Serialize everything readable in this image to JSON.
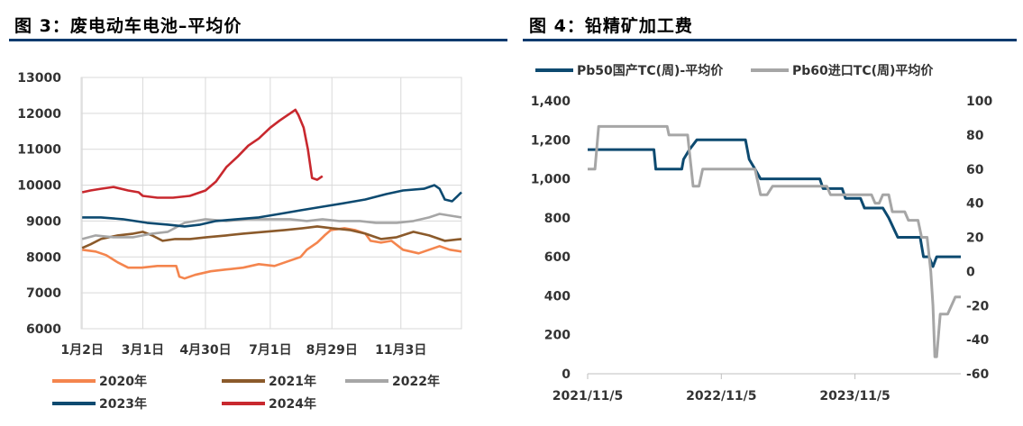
{
  "left_figure": {
    "title": "图 3：废电动车电池–平均价"
  },
  "right_figure": {
    "title": "图 4：铅精矿加工费"
  },
  "colors": {
    "rule": "#0b3a6e",
    "grid": "#d9d9d9"
  },
  "chart_data": [
    {
      "type": "line",
      "title": "",
      "x_type": "day-of-year",
      "xlim": [
        "1月1日",
        "12月31日"
      ],
      "categories": [
        "1月2日",
        "3月1日",
        "4月30日",
        "7月1日",
        "8月29日",
        "11月3日"
      ],
      "ylim": [
        6000,
        13000
      ],
      "yticks": [
        "13000",
        "12000",
        "11000",
        "10000",
        "9000",
        "8000",
        "7000",
        "6000"
      ],
      "grid": true,
      "legend_position": "bottom",
      "series": [
        {
          "name": "2020年",
          "color": "#f4854e",
          "points": [
            [
              "1月2日",
              8200
            ],
            [
              "1月15日",
              8150
            ],
            [
              "1月25日",
              8050
            ],
            [
              "2月5日",
              7850
            ],
            [
              "2月15日",
              7700
            ],
            [
              "2月28日",
              7700
            ],
            [
              "3月15日",
              7750
            ],
            [
              "3月25日",
              7750
            ],
            [
              "4月2日",
              7750
            ],
            [
              "4月5日",
              7450
            ],
            [
              "4月10日",
              7400
            ],
            [
              "4月20日",
              7500
            ],
            [
              "5月5日",
              7600
            ],
            [
              "5月20日",
              7650
            ],
            [
              "6月5日",
              7700
            ],
            [
              "6月20日",
              7800
            ],
            [
              "7月5日",
              7750
            ],
            [
              "7月20日",
              7900
            ],
            [
              "7月30日",
              8000
            ],
            [
              "8月5日",
              8200
            ],
            [
              "8月15日",
              8400
            ],
            [
              "8月22日",
              8600
            ],
            [
              "8月28日",
              8750
            ],
            [
              "9月10日",
              8800
            ],
            [
              "9月20日",
              8750
            ],
            [
              "9月30日",
              8650
            ],
            [
              "10月5日",
              8450
            ],
            [
              "10月15日",
              8400
            ],
            [
              "10月25日",
              8450
            ],
            [
              "11月5日",
              8200
            ],
            [
              "11月20日",
              8100
            ],
            [
              "11月30日",
              8200
            ],
            [
              "12月10日",
              8300
            ],
            [
              "12月20日",
              8200
            ],
            [
              "12月31日",
              8150
            ]
          ]
        },
        {
          "name": "2021年",
          "color": "#8b5a2b",
          "points": [
            [
              "1月2日",
              8250
            ],
            [
              "1月10日",
              8350
            ],
            [
              "1月20日",
              8500
            ],
            [
              "2月5日",
              8600
            ],
            [
              "2月20日",
              8650
            ],
            [
              "3月1日",
              8700
            ],
            [
              "3月10日",
              8600
            ],
            [
              "3月20日",
              8450
            ],
            [
              "4月1日",
              8500
            ],
            [
              "4月15日",
              8500
            ],
            [
              "5月1日",
              8550
            ],
            [
              "5月20日",
              8600
            ],
            [
              "6月5日",
              8650
            ],
            [
              "6月25日",
              8700
            ],
            [
              "7月15日",
              8750
            ],
            [
              "8月1日",
              8800
            ],
            [
              "8月15日",
              8850
            ],
            [
              "8月29日",
              8800
            ],
            [
              "9月15日",
              8750
            ],
            [
              "9月30日",
              8650
            ],
            [
              "10月15日",
              8500
            ],
            [
              "10月30日",
              8550
            ],
            [
              "11月15日",
              8700
            ],
            [
              "11月30日",
              8600
            ],
            [
              "12月15日",
              8450
            ],
            [
              "12月31日",
              8500
            ]
          ]
        },
        {
          "name": "2022年",
          "color": "#a6a6a6",
          "points": [
            [
              "1月2日",
              8500
            ],
            [
              "1月15日",
              8600
            ],
            [
              "2月1日",
              8550
            ],
            [
              "2月20日",
              8550
            ],
            [
              "3月10日",
              8650
            ],
            [
              "3月25日",
              8700
            ],
            [
              "4月10日",
              8950
            ],
            [
              "4月30日",
              9050
            ],
            [
              "5月20日",
              9000
            ],
            [
              "6月10日",
              9050
            ],
            [
              "6月30日",
              9050
            ],
            [
              "7月20日",
              9050
            ],
            [
              "8月5日",
              9000
            ],
            [
              "8月20日",
              9050
            ],
            [
              "9月5日",
              9000
            ],
            [
              "9月25日",
              9000
            ],
            [
              "10月10日",
              8950
            ],
            [
              "10月30日",
              8950
            ],
            [
              "11月15日",
              9000
            ],
            [
              "11月30日",
              9100
            ],
            [
              "12月10日",
              9200
            ],
            [
              "12月20日",
              9150
            ],
            [
              "12月31日",
              9100
            ]
          ]
        },
        {
          "name": "2023年",
          "color": "#0d4a70",
          "points": [
            [
              "1月2日",
              9100
            ],
            [
              "1月20日",
              9100
            ],
            [
              "2月10日",
              9050
            ],
            [
              "3月5日",
              8950
            ],
            [
              "3月25日",
              8900
            ],
            [
              "4月10日",
              8850
            ],
            [
              "4月25日",
              8900
            ],
            [
              "5月10日",
              9000
            ],
            [
              "5月30日",
              9050
            ],
            [
              "6月20日",
              9100
            ],
            [
              "7月10日",
              9200
            ],
            [
              "7月30日",
              9300
            ],
            [
              "8月20日",
              9400
            ],
            [
              "9月10日",
              9500
            ],
            [
              "9月30日",
              9600
            ],
            [
              "10月20日",
              9750
            ],
            [
              "11月5日",
              9850
            ],
            [
              "11月25日",
              9900
            ],
            [
              "12月5日",
              10000
            ],
            [
              "12月10日",
              9900
            ],
            [
              "12月15日",
              9600
            ],
            [
              "12月22日",
              9550
            ],
            [
              "12月31日",
              9800
            ]
          ]
        },
        {
          "name": "2024年",
          "color": "#c8282e",
          "points": [
            [
              "1月2日",
              9800
            ],
            [
              "1月10日",
              9850
            ],
            [
              "1月20日",
              9900
            ],
            [
              "2月1日",
              9950
            ],
            [
              "2月15日",
              9850
            ],
            [
              "2月25日",
              9800
            ],
            [
              "3月1日",
              9700
            ],
            [
              "3月15日",
              9650
            ],
            [
              "3月30日",
              9650
            ],
            [
              "4月15日",
              9700
            ],
            [
              "4月30日",
              9850
            ],
            [
              "5月10日",
              10100
            ],
            [
              "5月20日",
              10500
            ],
            [
              "5月31日",
              10800
            ],
            [
              "6月10日",
              11100
            ],
            [
              "6月20日",
              11300
            ],
            [
              "7月1日",
              11600
            ],
            [
              "7月10日",
              11800
            ],
            [
              "7月20日",
              12000
            ],
            [
              "7月25日",
              12100
            ],
            [
              "7月28日",
              11950
            ],
            [
              "8月2日",
              11600
            ],
            [
              "8月6日",
              11000
            ],
            [
              "8月10日",
              10200
            ],
            [
              "8月15日",
              10150
            ],
            [
              "8月20日",
              10250
            ]
          ]
        }
      ]
    },
    {
      "type": "line",
      "title": "",
      "x_type": "date",
      "xlim": [
        "2021-11-05",
        "2024-08-20"
      ],
      "categories": [
        "2021/11/5",
        "2022/11/5",
        "2023/11/5"
      ],
      "category_dates": [
        "2021-11-05",
        "2022-11-05",
        "2023-11-05"
      ],
      "ylim": [
        0,
        1400
      ],
      "yticks": [
        "1,400",
        "1,200",
        "1,000",
        "800",
        "600",
        "400",
        "200",
        "0"
      ],
      "y2lim": [
        -60,
        100
      ],
      "y2ticks": [
        "100",
        "80",
        "60",
        "40",
        "20",
        "0",
        "-20",
        "-40",
        "-60"
      ],
      "grid": false,
      "legend_position": "top",
      "series": [
        {
          "name": "Pb50国产TC(周)-平均价",
          "color": "#0d4a70",
          "axis": "left",
          "points": [
            [
              "2021-11-05",
              1150
            ],
            [
              "2022-05-05",
              1150
            ],
            [
              "2022-05-10",
              1050
            ],
            [
              "2022-07-20",
              1050
            ],
            [
              "2022-07-25",
              1100
            ],
            [
              "2022-08-10",
              1150
            ],
            [
              "2022-08-30",
              1200
            ],
            [
              "2023-01-10",
              1200
            ],
            [
              "2023-01-20",
              1100
            ],
            [
              "2023-02-05",
              1050
            ],
            [
              "2023-02-20",
              1000
            ],
            [
              "2023-08-01",
              1000
            ],
            [
              "2023-08-10",
              950
            ],
            [
              "2023-10-01",
              950
            ],
            [
              "2023-10-10",
              900
            ],
            [
              "2023-11-20",
              900
            ],
            [
              "2023-12-01",
              850
            ],
            [
              "2024-01-20",
              850
            ],
            [
              "2024-02-05",
              800
            ],
            [
              "2024-03-01",
              700
            ],
            [
              "2024-05-01",
              700
            ],
            [
              "2024-05-10",
              600
            ],
            [
              "2024-05-25",
              600
            ],
            [
              "2024-06-05",
              550
            ],
            [
              "2024-06-15",
              600
            ],
            [
              "2024-08-20",
              600
            ]
          ]
        },
        {
          "name": "Pb60进口TC(周)平均价",
          "color": "#a6a6a6",
          "axis": "right",
          "points": [
            [
              "2021-11-05",
              60
            ],
            [
              "2021-11-25",
              60
            ],
            [
              "2021-12-05",
              85
            ],
            [
              "2022-06-10",
              85
            ],
            [
              "2022-06-15",
              80
            ],
            [
              "2022-08-05",
              80
            ],
            [
              "2022-08-15",
              60
            ],
            [
              "2022-08-20",
              50
            ],
            [
              "2022-09-05",
              50
            ],
            [
              "2022-09-15",
              60
            ],
            [
              "2023-02-05",
              60
            ],
            [
              "2023-02-20",
              45
            ],
            [
              "2023-03-10",
              45
            ],
            [
              "2023-03-25",
              50
            ],
            [
              "2023-08-20",
              50
            ],
            [
              "2023-08-30",
              45
            ],
            [
              "2023-12-20",
              45
            ],
            [
              "2023-12-30",
              40
            ],
            [
              "2024-01-10",
              40
            ],
            [
              "2024-01-20",
              45
            ],
            [
              "2024-02-05",
              45
            ],
            [
              "2024-02-15",
              35
            ],
            [
              "2024-03-20",
              35
            ],
            [
              "2024-03-30",
              30
            ],
            [
              "2024-04-25",
              30
            ],
            [
              "2024-05-05",
              20
            ],
            [
              "2024-05-20",
              20
            ],
            [
              "2024-05-30",
              0
            ],
            [
              "2024-06-05",
              -20
            ],
            [
              "2024-06-10",
              -50
            ],
            [
              "2024-06-15",
              -50
            ],
            [
              "2024-06-25",
              -25
            ],
            [
              "2024-07-15",
              -25
            ],
            [
              "2024-08-05",
              -15
            ],
            [
              "2024-08-20",
              -15
            ]
          ]
        }
      ]
    }
  ]
}
